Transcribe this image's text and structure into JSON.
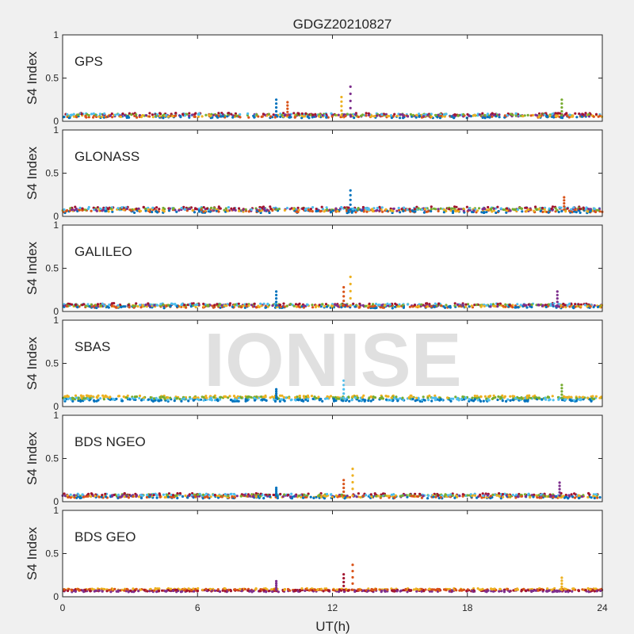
{
  "figure": {
    "title": "GDGZ20210827",
    "xlabel": "UT(h)",
    "watermark": "IONISE"
  },
  "chart_data": [
    {
      "type": "scatter",
      "panel_label": "GPS",
      "ylabel": "S4 Index",
      "xlim": [
        0,
        24
      ],
      "ylim": [
        0,
        1
      ],
      "xticks": [
        0,
        6,
        12,
        18,
        24
      ],
      "yticks": [
        0,
        0.5,
        1
      ],
      "xtick_labels": [],
      "ytick_labels": [
        "0",
        "0.5",
        "1"
      ],
      "series_colors": [
        "#0072BD",
        "#D95319",
        "#EDB120",
        "#7E2F8E",
        "#77AC30",
        "#4DBEEE",
        "#A2142F"
      ],
      "baseline": 0.07,
      "spread": 0.04,
      "spikes": [
        {
          "x": 9.5,
          "y": 0.25
        },
        {
          "x": 10.0,
          "y": 0.22
        },
        {
          "x": 12.4,
          "y": 0.28
        },
        {
          "x": 12.8,
          "y": 0.4
        },
        {
          "x": 22.2,
          "y": 0.25
        }
      ]
    },
    {
      "type": "scatter",
      "panel_label": "GLONASS",
      "ylabel": "S4 Index",
      "xlim": [
        0,
        24
      ],
      "ylim": [
        0,
        1
      ],
      "xticks": [
        0,
        6,
        12,
        18,
        24
      ],
      "yticks": [
        0,
        0.5,
        1
      ],
      "xtick_labels": [],
      "ytick_labels": [
        "0",
        "0.5",
        "1"
      ],
      "series_colors": [
        "#0072BD",
        "#D95319",
        "#EDB120",
        "#7E2F8E",
        "#77AC30",
        "#4DBEEE",
        "#A2142F"
      ],
      "baseline": 0.08,
      "spread": 0.05,
      "spikes": [
        {
          "x": 12.8,
          "y": 0.3
        },
        {
          "x": 22.3,
          "y": 0.22
        }
      ]
    },
    {
      "type": "scatter",
      "panel_label": "GALILEO",
      "ylabel": "S4 Index",
      "xlim": [
        0,
        24
      ],
      "ylim": [
        0,
        1
      ],
      "xticks": [
        0,
        6,
        12,
        18,
        24
      ],
      "yticks": [
        0,
        0.5,
        1
      ],
      "xtick_labels": [],
      "ytick_labels": [
        "0",
        "0.5",
        "1"
      ],
      "series_colors": [
        "#0072BD",
        "#D95319",
        "#EDB120",
        "#7E2F8E",
        "#77AC30",
        "#4DBEEE",
        "#A2142F"
      ],
      "baseline": 0.07,
      "spread": 0.04,
      "spikes": [
        {
          "x": 9.5,
          "y": 0.23
        },
        {
          "x": 12.5,
          "y": 0.28
        },
        {
          "x": 12.8,
          "y": 0.4
        },
        {
          "x": 22.0,
          "y": 0.23
        }
      ]
    },
    {
      "type": "scatter",
      "panel_label": "SBAS",
      "ylabel": "S4 Index",
      "xlim": [
        0,
        24
      ],
      "ylim": [
        0,
        1
      ],
      "xticks": [
        0,
        6,
        12,
        18,
        24
      ],
      "yticks": [
        0,
        0.5,
        1
      ],
      "xtick_labels": [],
      "ytick_labels": [
        "0",
        "0.5",
        "1"
      ],
      "series_colors": [
        "#0072BD",
        "#4DBEEE",
        "#77AC30",
        "#EDB120"
      ],
      "baseline": 0.1,
      "spread": 0.05,
      "spikes": [
        {
          "x": 9.5,
          "y": 0.2
        },
        {
          "x": 12.5,
          "y": 0.3
        },
        {
          "x": 22.2,
          "y": 0.25
        }
      ]
    },
    {
      "type": "scatter",
      "panel_label": "BDS NGEO",
      "ylabel": "S4 Index",
      "xlim": [
        0,
        24
      ],
      "ylim": [
        0,
        1
      ],
      "xticks": [
        0,
        6,
        12,
        18,
        24
      ],
      "yticks": [
        0,
        0.5,
        1
      ],
      "xtick_labels": [],
      "ytick_labels": [
        "0",
        "0.5",
        "1"
      ],
      "series_colors": [
        "#0072BD",
        "#D95319",
        "#EDB120",
        "#7E2F8E",
        "#77AC30",
        "#4DBEEE",
        "#A2142F"
      ],
      "baseline": 0.07,
      "spread": 0.04,
      "spikes": [
        {
          "x": 9.5,
          "y": 0.16
        },
        {
          "x": 12.5,
          "y": 0.25
        },
        {
          "x": 12.9,
          "y": 0.38
        },
        {
          "x": 22.1,
          "y": 0.22
        }
      ]
    },
    {
      "type": "scatter",
      "panel_label": "BDS GEO",
      "ylabel": "S4 Index",
      "xlim": [
        0,
        24
      ],
      "ylim": [
        0,
        1
      ],
      "xticks": [
        0,
        6,
        12,
        18,
        24
      ],
      "yticks": [
        0,
        0.5,
        1
      ],
      "xtick_labels": [
        "0",
        "6",
        "12",
        "18",
        "24"
      ],
      "ytick_labels": [
        "0",
        "0.5",
        "1"
      ],
      "series_colors": [
        "#7E2F8E",
        "#A2142F",
        "#D95319",
        "#EDB120"
      ],
      "baseline": 0.08,
      "spread": 0.03,
      "spikes": [
        {
          "x": 9.5,
          "y": 0.18
        },
        {
          "x": 12.5,
          "y": 0.26
        },
        {
          "x": 12.9,
          "y": 0.37
        },
        {
          "x": 22.2,
          "y": 0.22
        }
      ]
    }
  ]
}
